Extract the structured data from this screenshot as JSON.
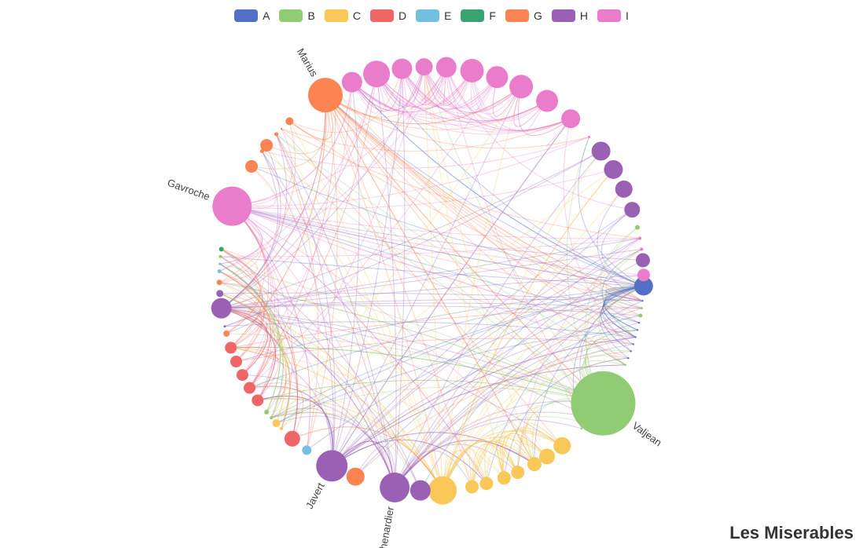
{
  "title": "Les Miserables",
  "legend": [
    {
      "label": "A",
      "color": "#5470c6"
    },
    {
      "label": "B",
      "color": "#91cc75"
    },
    {
      "label": "C",
      "color": "#fac858"
    },
    {
      "label": "D",
      "color": "#ee6666"
    },
    {
      "label": "E",
      "color": "#73c0de"
    },
    {
      "label": "F",
      "color": "#3ba272"
    },
    {
      "label": "G",
      "color": "#fc8452"
    },
    {
      "label": "H",
      "color": "#9a60b4"
    },
    {
      "label": "I",
      "color": "#ea7ccc"
    }
  ],
  "labeled_nodes": [
    "Marius",
    "Gavroche",
    "Valjean",
    "Javert",
    "Thenardier"
  ],
  "node_count": 77
}
